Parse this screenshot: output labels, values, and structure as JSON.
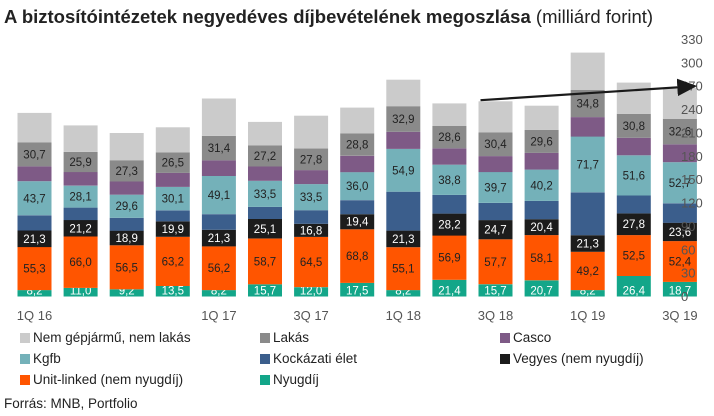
{
  "title": {
    "bold": "A biztosítóintézetek negyedéves díjbevételének megoszlása",
    "normal": "(milliárd forint)"
  },
  "source": "Forrás: MNB, Portfolio",
  "chart_data": {
    "type": "bar",
    "stacked": true,
    "title": "A biztosítóintézetek negyedéves díjbevételének megoszlása (milliárd forint)",
    "x_tick_labels": [
      "1Q 16",
      "1Q 17",
      "3Q 17",
      "1Q 18",
      "3Q 18",
      "1Q 19",
      "3Q 19"
    ],
    "categories": [
      "1Q 16",
      "2Q 16",
      "3Q 16",
      "4Q 16",
      "1Q 17",
      "2Q 17",
      "3Q 17",
      "4Q 17",
      "1Q 18",
      "2Q 18",
      "3Q 18",
      "4Q 18",
      "1Q 19",
      "2Q 19",
      "3Q 19"
    ],
    "ylim": [
      0,
      330
    ],
    "y_ticks": [
      0,
      30,
      60,
      90,
      120,
      150,
      180,
      210,
      240,
      270,
      300,
      330
    ],
    "y_axis_side": "right",
    "grid": false,
    "legend_position": "bottom",
    "series": [
      {
        "name": "Nyugdíj",
        "color": "#13a689",
        "label_color": "#ffffff",
        "values": [
          8.2,
          11.0,
          9.2,
          13.5,
          8.2,
          15.7,
          12.0,
          17.5,
          8.2,
          21.4,
          15.7,
          20.7,
          8.2,
          26.4,
          18.7
        ]
      },
      {
        "name": "Unit-linked (nem nyugdíj)",
        "color": "#ff5500",
        "label_color": "#222222",
        "values": [
          55.3,
          66.0,
          56.5,
          63.2,
          56.2,
          58.7,
          64.5,
          68.8,
          55.1,
          56.9,
          57.7,
          58.1,
          49.2,
          52.5,
          52.4
        ]
      },
      {
        "name": "Vegyes (nem nyugdíj)",
        "color": "#1c1c1c",
        "label_color": "#ffffff",
        "values": [
          21.3,
          21.2,
          18.9,
          19.9,
          21.3,
          25.1,
          16.8,
          19.4,
          21.3,
          28.2,
          24.7,
          20.4,
          21.3,
          27.8,
          23.6
        ]
      },
      {
        "name": "Kockázati élet",
        "color": "#3b5e8c",
        "label_color": null,
        "values": [
          19.5,
          16.0,
          16.5,
          14.0,
          20.0,
          15.5,
          17.5,
          18.0,
          50.0,
          24.0,
          22.0,
          23.5,
          55.0,
          23.0,
          25.0
        ]
      },
      {
        "name": "Kgfb",
        "color": "#74b1b9",
        "label_color": "#222222",
        "values": [
          43.7,
          28.1,
          29.6,
          30.1,
          49.1,
          33.5,
          33.5,
          36.0,
          54.9,
          38.8,
          39.7,
          40.2,
          71.7,
          51.6,
          52.7
        ]
      },
      {
        "name": "Casco",
        "color": "#7e5a86",
        "label_color": null,
        "values": [
          19.0,
          17.5,
          17.0,
          18.0,
          20.0,
          18.5,
          18.0,
          21.0,
          22.0,
          21.0,
          20.5,
          21.5,
          25.0,
          22.5,
          23.0
        ]
      },
      {
        "name": "Lakás",
        "color": "#8a8a8a",
        "label_color": "#222222",
        "values": [
          30.7,
          25.9,
          27.3,
          26.5,
          31.4,
          27.2,
          27.8,
          28.8,
          32.9,
          28.6,
          30.4,
          29.6,
          34.8,
          30.8,
          32.6
        ]
      },
      {
        "name": "Nem gépjármű, nem lakás",
        "color": "#cbcbcb",
        "label_color": null,
        "values": [
          38.0,
          34.0,
          35.0,
          32.0,
          48.0,
          30.0,
          42.0,
          33.0,
          34.0,
          29.0,
          40.0,
          31.0,
          48.0,
          40.0,
          40.0
        ]
      }
    ],
    "legend_order": [
      "Nem gépjármű, nem lakás",
      "Lakás",
      "Casco",
      "Kgfb",
      "Kockázati élet",
      "Vegyes (nem nyugdíj)",
      "Unit-linked (nem nyugdíj)",
      "Nyugdíj"
    ],
    "annotations": [
      {
        "type": "trend-arrow",
        "from_category": "3Q 18",
        "to_category": "3Q 19",
        "from_value": 252,
        "to_value": 270,
        "color": "#1a1a1a"
      }
    ]
  }
}
